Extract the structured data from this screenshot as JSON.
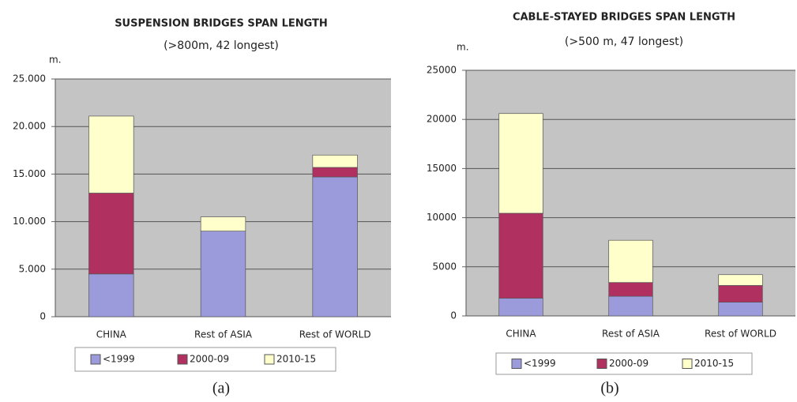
{
  "chart_data": [
    {
      "type": "stacked_bar",
      "title": "SUSPENSION BRIDGES SPAN LENGTH",
      "subtitle": "(>800m, 42 longest)",
      "y_unit": "m.",
      "caption": "(a)",
      "categories": [
        "CHINA",
        "Rest of ASIA",
        "Rest of WORLD"
      ],
      "series": [
        {
          "name": "<1999",
          "color": "#9b9bdc",
          "values": [
            4500,
            9000,
            14700
          ]
        },
        {
          "name": "2000-09",
          "color": "#b03060",
          "values": [
            8500,
            0,
            1000
          ]
        },
        {
          "name": "2010-15",
          "color": "#ffffcc",
          "values": [
            8100,
            1500,
            1300
          ]
        }
      ],
      "ylim": [
        0,
        25000
      ],
      "yticks": [
        0,
        {
          "value": 5000,
          "label": "5.000"
        },
        {
          "value": 10000,
          "label": "10.000"
        },
        {
          "value": 15000,
          "label": "15.000"
        },
        {
          "value": 20000,
          "label": "20.000"
        },
        {
          "value": 25000,
          "label": "25.000"
        }
      ],
      "grid": true,
      "legend": "bottom"
    },
    {
      "type": "stacked_bar",
      "title": "CABLE-STAYED BRIDGES SPAN LENGTH",
      "subtitle": "(>500 m, 47 longest)",
      "y_unit": "m.",
      "caption": "(b)",
      "categories": [
        "CHINA",
        "Rest of ASIA",
        "Rest of WORLD"
      ],
      "series": [
        {
          "name": "<1999",
          "color": "#9b9bdc",
          "values": [
            1800,
            2000,
            1400
          ]
        },
        {
          "name": "2000-09",
          "color": "#b03060",
          "values": [
            8650,
            1400,
            1700
          ]
        },
        {
          "name": "2010-15",
          "color": "#ffffcc",
          "values": [
            10150,
            4300,
            1100
          ]
        }
      ],
      "ylim": [
        0,
        25000
      ],
      "yticks": [
        0,
        5000,
        10000,
        15000,
        20000,
        25000
      ],
      "grid": true,
      "legend": "bottom"
    }
  ]
}
